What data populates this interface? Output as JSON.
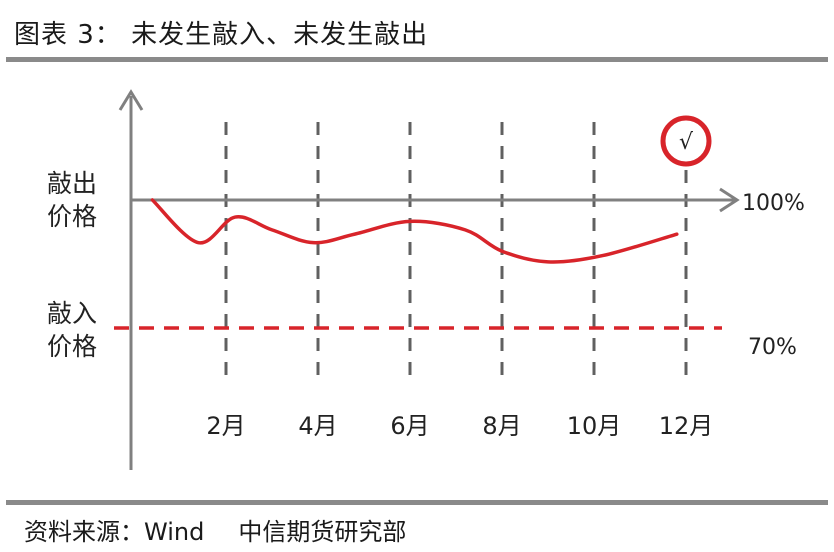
{
  "header": {
    "title": "图表 3： 未发生敲入、未发生敲出"
  },
  "footer": {
    "source_label": "资料来源：Wind",
    "source_org": "中信期货研究部"
  },
  "chart_data": {
    "type": "line",
    "y_tick_labels": [
      "敲出价格",
      "敲入价格"
    ],
    "right_labels": [
      "100%",
      "70%"
    ],
    "levels": {
      "knock_out": 100,
      "knock_in": 70
    },
    "categories": [
      "2月",
      "4月",
      "6月",
      "8月",
      "10月",
      "12月"
    ],
    "category_months": [
      2,
      4,
      6,
      8,
      10,
      12
    ],
    "series": [
      {
        "points": [
          [
            0.4,
            100
          ],
          [
            1.4,
            90
          ],
          [
            2.2,
            96
          ],
          [
            3.0,
            93
          ],
          [
            3.9,
            90
          ],
          [
            4.8,
            92
          ],
          [
            6.0,
            95
          ],
          [
            7.2,
            93
          ],
          [
            8.0,
            88
          ],
          [
            9.0,
            85.5
          ],
          [
            10.2,
            87
          ],
          [
            11.8,
            92
          ]
        ]
      }
    ],
    "marker": {
      "symbol": "√",
      "at_month": 12
    },
    "colors": {
      "line": "#d8242a",
      "knock_in_line": "#d8242a",
      "axis": "#808080",
      "gridline": "#606060"
    }
  }
}
